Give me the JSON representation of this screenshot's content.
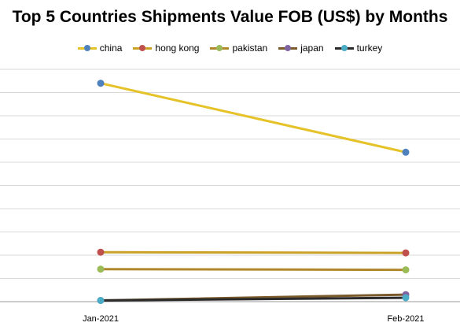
{
  "chart_data": {
    "type": "line",
    "title": "Top 5 Countries Shipments Value FOB (US$) by Months",
    "xlabel": "",
    "ylabel": "",
    "categories": [
      "Jan-2021",
      "Feb-2021"
    ],
    "ylim": [
      0,
      100
    ],
    "grid": true,
    "legend_position": "top",
    "series": [
      {
        "name": "china",
        "values": [
          94,
          64.3
        ],
        "color": "#e6c229",
        "marker": "#4f81bd"
      },
      {
        "name": "hong kong",
        "values": [
          21.3,
          21
        ],
        "color": "#c9a227",
        "marker": "#c0504d"
      },
      {
        "name": "pakistan",
        "values": [
          14,
          13.7
        ],
        "color": "#b0882b",
        "marker": "#9bbb59"
      },
      {
        "name": "japan",
        "values": [
          0.5,
          3
        ],
        "color": "#7a5a2a",
        "marker": "#8064a2"
      },
      {
        "name": "turkey",
        "values": [
          0.5,
          1.7
        ],
        "color": "#2b2b2b",
        "marker": "#4bacc6"
      }
    ]
  }
}
